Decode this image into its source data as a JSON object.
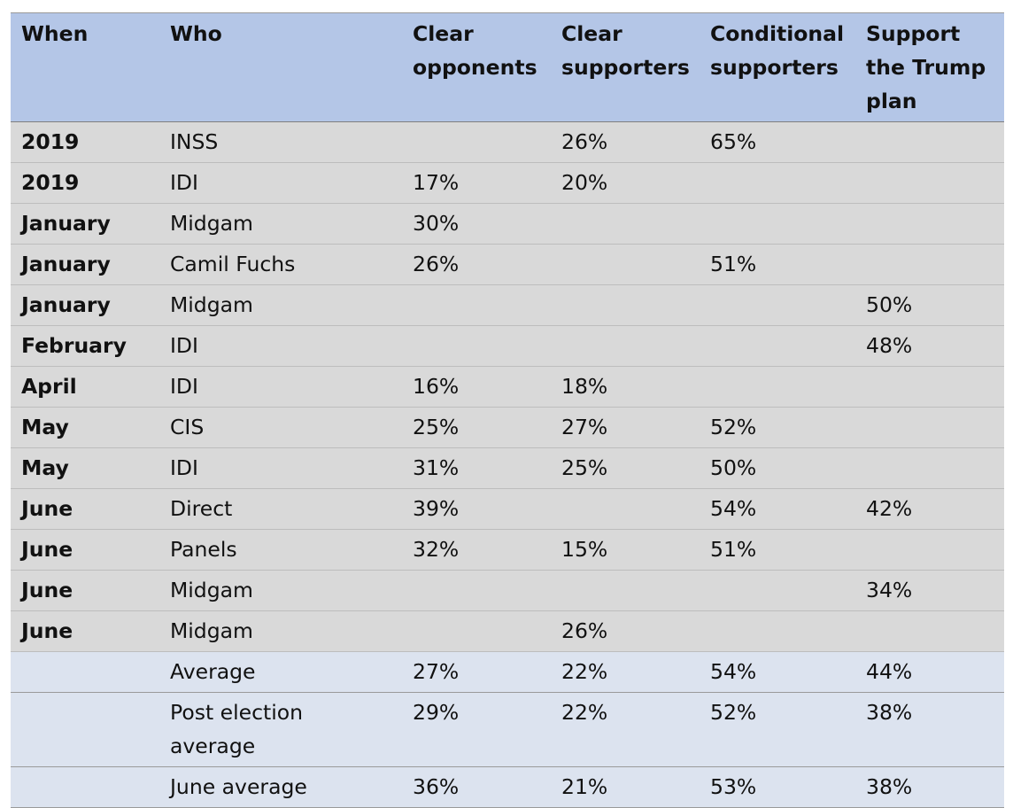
{
  "table": {
    "headers": [
      "When",
      "Who",
      "Clear opponents",
      "Clear supporters",
      "Conditional supporters",
      "Support the Trump plan"
    ],
    "rows": [
      [
        "2019",
        "INSS",
        "",
        "26%",
        "65%",
        ""
      ],
      [
        "2019",
        "IDI",
        "17%",
        "20%",
        "",
        ""
      ],
      [
        "January",
        "Midgam",
        "30%",
        "",
        "",
        ""
      ],
      [
        "January",
        "Camil Fuchs",
        "26%",
        "",
        "51%",
        ""
      ],
      [
        "January",
        "Midgam",
        "",
        "",
        "",
        "50%"
      ],
      [
        "February",
        "IDI",
        "",
        "",
        "",
        "48%"
      ],
      [
        "April",
        "IDI",
        "16%",
        "18%",
        "",
        ""
      ],
      [
        "May",
        "CIS",
        "25%",
        "27%",
        "52%",
        ""
      ],
      [
        "May",
        "IDI",
        "31%",
        "25%",
        "50%",
        ""
      ],
      [
        "June",
        "Direct",
        "39%",
        "",
        "54%",
        "42%"
      ],
      [
        "June",
        "Panels",
        "32%",
        "15%",
        "51%",
        ""
      ],
      [
        "June",
        "Midgam",
        "",
        "",
        "",
        "34%"
      ],
      [
        "June",
        "Midgam",
        "",
        "26%",
        "",
        ""
      ]
    ],
    "summary_rows": [
      [
        "",
        "Average",
        "27%",
        "22%",
        "54%",
        "44%"
      ],
      [
        "",
        "Post election average",
        "29%",
        "22%",
        "52%",
        "38%"
      ],
      [
        "",
        "June average",
        "36%",
        "21%",
        "53%",
        "38%"
      ]
    ]
  },
  "colors": {
    "header_bg": "#b4c6e7",
    "row_bg": "#d9d9d9",
    "summary_bg": "#dce3ef"
  }
}
